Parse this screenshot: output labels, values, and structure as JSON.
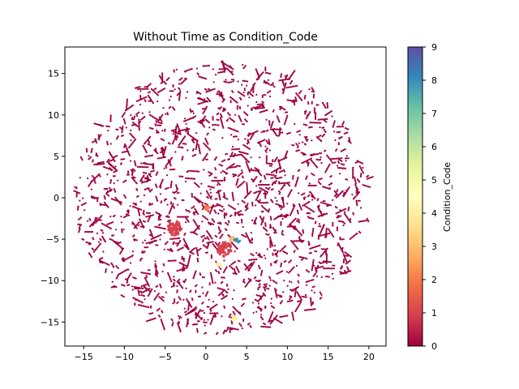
{
  "chart_data": {
    "type": "scatter",
    "title": "Without Time as Condition_Code",
    "xlabel": "",
    "ylabel": "",
    "xlim": [
      -17.3,
      22.1
    ],
    "ylim": [
      -17.9,
      18.2
    ],
    "xticks": [
      -15,
      -10,
      -5,
      0,
      5,
      10,
      15,
      20
    ],
    "yticks": [
      -15,
      -10,
      -5,
      0,
      5,
      10,
      15
    ],
    "xtick_labels": [
      "−15",
      "−10",
      "−5",
      "0",
      "5",
      "10",
      "15",
      "20"
    ],
    "ytick_labels": [
      "−15",
      "−10",
      "−5",
      "0",
      "5",
      "10",
      "15"
    ],
    "grid": false,
    "point_cloud": {
      "description_values": {
        "center": [
          2.0,
          0.0
        ],
        "radius_x": 18.0,
        "radius_y": 16.5,
        "dominant_condition_code": 0
      }
    },
    "clusters": [
      {
        "x": 2.3,
        "y": -6.2,
        "condition_code": 1
      },
      {
        "x": -3.8,
        "y": -3.7,
        "condition_code": 1
      },
      {
        "x": 0.2,
        "y": -1.2,
        "condition_code": 2
      },
      {
        "x": 3.3,
        "y": -5.0,
        "condition_code": 3
      },
      {
        "x": 3.8,
        "y": -5.2,
        "condition_code": 8
      },
      {
        "x": 1.7,
        "y": -8.0,
        "condition_code": 4
      },
      {
        "x": 3.5,
        "y": -14.5,
        "condition_code": 4
      }
    ],
    "colorbar": {
      "label": "Condition_Code",
      "range": [
        0,
        9
      ],
      "ticks": [
        0,
        1,
        2,
        3,
        4,
        5,
        6,
        7,
        8,
        9
      ],
      "tick_labels": [
        "0",
        "1",
        "2",
        "3",
        "4",
        "5",
        "6",
        "7",
        "8",
        "9"
      ],
      "colormap": "Spectral",
      "stops": [
        "#9e0142",
        "#d53e4f",
        "#f46d43",
        "#fdae61",
        "#fee08b",
        "#ffffbf",
        "#e6f598",
        "#abdda4",
        "#66c2a5",
        "#3288bd",
        "#5e4fa2"
      ]
    }
  }
}
